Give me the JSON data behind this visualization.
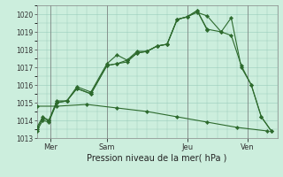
{
  "xlabel": "Pression niveau de la mer( hPa )",
  "bg_color": "#cceedd",
  "line_color": "#2d6a2d",
  "grid_color": "#99ccbb",
  "ylim": [
    1013,
    1020.5
  ],
  "xlim": [
    0,
    12
  ],
  "series1_x": [
    0.0,
    0.3,
    0.6,
    1.0,
    1.5,
    2.0,
    2.7,
    3.5,
    4.0,
    4.5,
    5.0,
    5.5,
    6.0,
    6.5,
    7.0,
    7.5,
    8.0,
    8.5,
    9.2,
    9.7,
    10.2,
    10.7,
    11.2,
    11.7
  ],
  "series1_y": [
    1013.6,
    1014.2,
    1014.0,
    1015.1,
    1015.1,
    1015.9,
    1015.6,
    1017.2,
    1017.7,
    1017.4,
    1017.8,
    1017.9,
    1018.2,
    1018.3,
    1019.7,
    1019.85,
    1020.2,
    1019.15,
    1019.0,
    1019.8,
    1017.0,
    1016.0,
    1014.2,
    1013.4
  ],
  "series2_x": [
    0.0,
    0.3,
    0.6,
    1.0,
    1.5,
    2.0,
    2.7,
    3.5,
    4.0,
    4.5,
    5.0,
    5.5,
    6.0,
    6.5,
    7.0,
    7.5,
    8.0,
    8.5,
    9.2,
    9.7,
    10.2,
    10.7,
    11.2,
    11.7
  ],
  "series2_y": [
    1013.5,
    1014.1,
    1014.0,
    1015.0,
    1015.1,
    1015.8,
    1015.5,
    1017.1,
    1017.2,
    1017.4,
    1017.9,
    1017.9,
    1018.2,
    1018.3,
    1019.7,
    1019.85,
    1020.1,
    1019.9,
    1019.0,
    1018.8,
    1017.1,
    1016.0,
    1014.2,
    1013.4
  ],
  "series3_x": [
    0.0,
    0.3,
    0.6,
    1.0,
    1.5,
    2.0,
    2.7,
    3.5,
    4.0,
    4.5,
    5.0,
    5.5,
    6.0,
    6.5,
    7.0,
    7.5,
    8.0,
    8.5
  ],
  "series3_y": [
    1013.4,
    1014.0,
    1013.9,
    1015.0,
    1015.1,
    1015.8,
    1015.5,
    1017.1,
    1017.2,
    1017.3,
    1017.8,
    1017.9,
    1018.2,
    1018.3,
    1019.7,
    1019.85,
    1020.2,
    1019.1
  ],
  "series4_x": [
    0.0,
    1.0,
    2.5,
    4.0,
    5.5,
    7.0,
    8.5,
    10.0,
    11.5
  ],
  "series4_y": [
    1014.8,
    1014.8,
    1014.9,
    1014.7,
    1014.5,
    1014.2,
    1013.9,
    1013.6,
    1013.4
  ],
  "xticks_pos": [
    0.7,
    3.5,
    7.5,
    10.5
  ],
  "xtick_labels": [
    "Mer",
    "Sam",
    "Jeu",
    "Ven"
  ],
  "yticks": [
    1013,
    1014,
    1015,
    1016,
    1017,
    1018,
    1019,
    1020
  ],
  "vline_positions": [
    0.7,
    3.5,
    7.5,
    10.5
  ]
}
